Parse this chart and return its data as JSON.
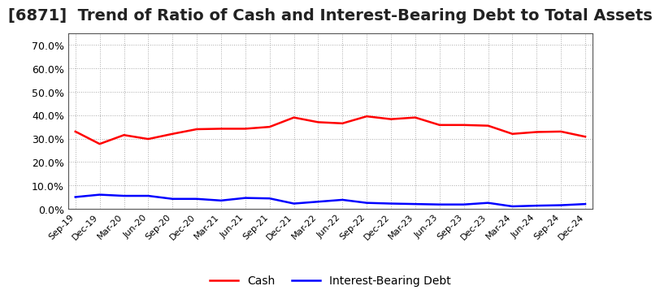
{
  "title": "[6871]  Trend of Ratio of Cash and Interest-Bearing Debt to Total Assets",
  "title_fontsize": 14,
  "x_labels": [
    "Sep-19",
    "Dec-19",
    "Mar-20",
    "Jun-20",
    "Sep-20",
    "Dec-20",
    "Mar-21",
    "Jun-21",
    "Sep-21",
    "Dec-21",
    "Mar-22",
    "Jun-22",
    "Sep-22",
    "Dec-22",
    "Mar-23",
    "Jun-23",
    "Sep-23",
    "Dec-23",
    "Mar-24",
    "Jun-24",
    "Sep-24",
    "Dec-24"
  ],
  "cash": [
    0.33,
    0.277,
    0.315,
    0.298,
    0.32,
    0.34,
    0.342,
    0.342,
    0.35,
    0.39,
    0.37,
    0.365,
    0.395,
    0.383,
    0.39,
    0.358,
    0.358,
    0.355,
    0.32,
    0.328,
    0.33,
    0.308
  ],
  "interest_bearing_debt": [
    0.05,
    0.06,
    0.055,
    0.055,
    0.042,
    0.042,
    0.035,
    0.046,
    0.044,
    0.022,
    0.03,
    0.038,
    0.025,
    0.022,
    0.02,
    0.018,
    0.018,
    0.025,
    0.01,
    0.013,
    0.015,
    0.02
  ],
  "cash_color": "#ff0000",
  "debt_color": "#0000ff",
  "ylim": [
    0.0,
    0.75
  ],
  "yticks": [
    0.0,
    0.1,
    0.2,
    0.3,
    0.4,
    0.5,
    0.6,
    0.7
  ],
  "grid_color": "#aaaaaa",
  "bg_color": "#ffffff",
  "plot_bg_color": "#ffffff",
  "legend_cash": "Cash",
  "legend_debt": "Interest-Bearing Debt",
  "line_width": 1.8,
  "title_color": "#222222"
}
